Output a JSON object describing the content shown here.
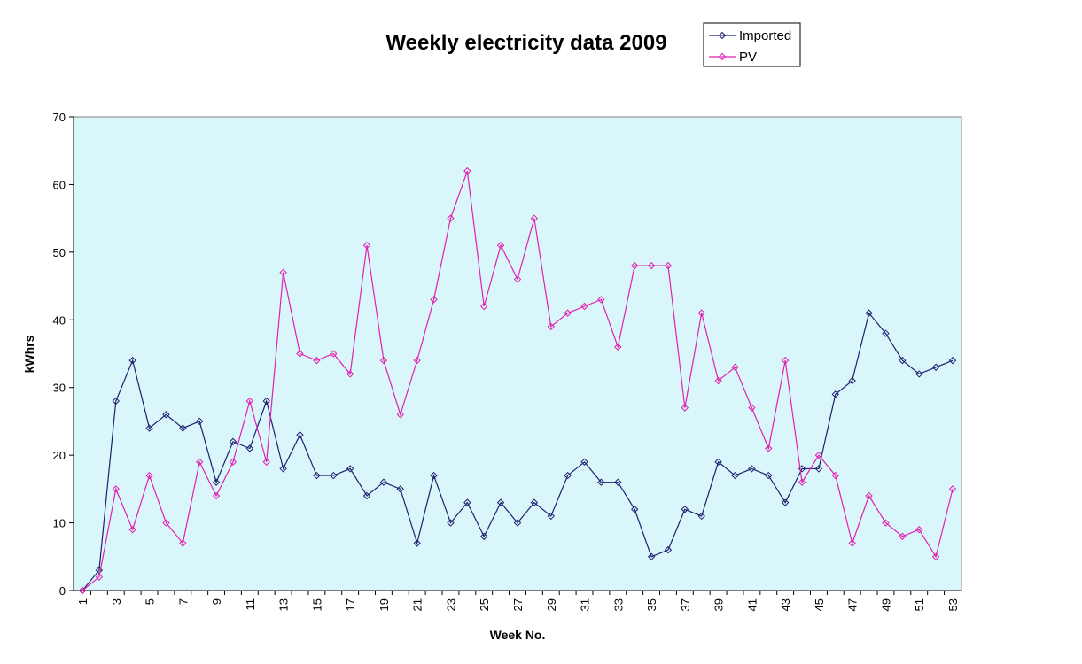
{
  "chart_data": {
    "type": "line",
    "title": "Weekly electricity data 2009",
    "xlabel": "Week No.",
    "ylabel": "kWhrs",
    "ylim": [
      0,
      70
    ],
    "yticks": [
      0,
      10,
      20,
      30,
      40,
      50,
      60,
      70
    ],
    "x": [
      1,
      2,
      3,
      4,
      5,
      6,
      7,
      8,
      9,
      10,
      11,
      12,
      13,
      14,
      15,
      16,
      17,
      18,
      19,
      20,
      21,
      22,
      23,
      24,
      25,
      26,
      27,
      28,
      29,
      30,
      31,
      32,
      33,
      34,
      35,
      36,
      37,
      38,
      39,
      40,
      41,
      42,
      43,
      44,
      45,
      46,
      47,
      48,
      49,
      50,
      51,
      52,
      53
    ],
    "xtick_labels": [
      "1",
      "3",
      "5",
      "7",
      "9",
      "11",
      "13",
      "15",
      "17",
      "19",
      "21",
      "23",
      "25",
      "27",
      "29",
      "31",
      "33",
      "35",
      "37",
      "39",
      "41",
      "43",
      "45",
      "47",
      "49",
      "51",
      "53"
    ],
    "series": [
      {
        "name": "Imported",
        "color": "#1f1f6f",
        "values": [
          0,
          3,
          28,
          34,
          24,
          26,
          24,
          25,
          16,
          22,
          21,
          28,
          18,
          23,
          17,
          17,
          18,
          14,
          16,
          15,
          7,
          17,
          10,
          13,
          8,
          13,
          10,
          13,
          11,
          17,
          19,
          16,
          16,
          12,
          5,
          6,
          12,
          11,
          19,
          17,
          18,
          17,
          13,
          18,
          18,
          29,
          31,
          41,
          38,
          34,
          32,
          33,
          34
        ]
      },
      {
        "name": "PV",
        "color": "#e020b0",
        "values": [
          0,
          2,
          15,
          9,
          17,
          10,
          7,
          19,
          14,
          19,
          28,
          19,
          47,
          35,
          34,
          35,
          32,
          51,
          34,
          26,
          34,
          43,
          55,
          62,
          42,
          51,
          46,
          55,
          39,
          41,
          42,
          43,
          36,
          48,
          48,
          48,
          27,
          41,
          31,
          33,
          27,
          21,
          34,
          16,
          20,
          17,
          7,
          14,
          10,
          8,
          9,
          5,
          15
        ]
      }
    ],
    "plot_background": "#d9f7fa",
    "grid": false,
    "legend_position": "top-right"
  }
}
